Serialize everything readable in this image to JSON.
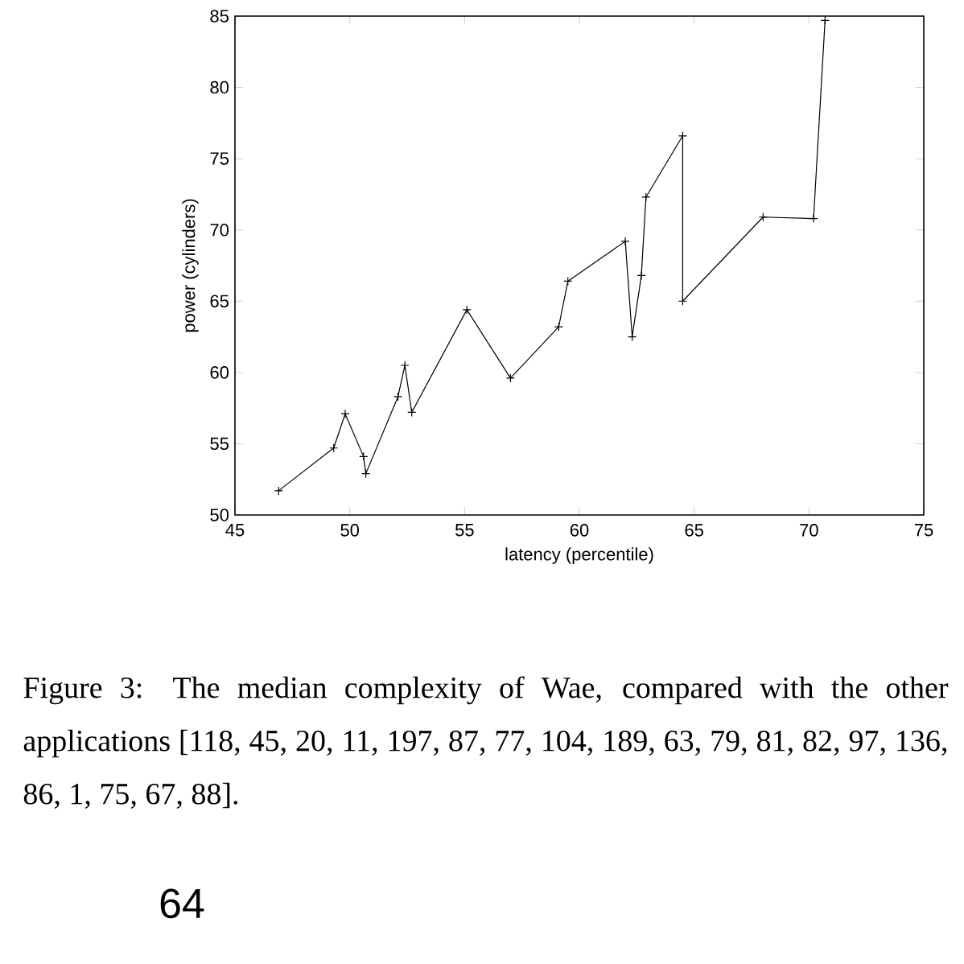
{
  "chart_data": {
    "type": "line",
    "xlabel": "latency (percentile)",
    "ylabel": "power (cylinders)",
    "x": [
      46.9,
      49.3,
      49.8,
      50.6,
      50.7,
      52.1,
      52.4,
      52.7,
      55.1,
      57.0,
      59.1,
      59.5,
      62.0,
      62.3,
      62.7,
      62.9,
      64.5,
      64.5,
      68.0,
      70.2,
      70.7
    ],
    "series": [
      {
        "color": "#000000",
        "values": [
          51.7,
          54.7,
          57.1,
          54.1,
          52.9,
          58.3,
          60.5,
          57.2,
          64.4,
          59.6,
          63.2,
          66.4,
          69.2,
          62.5,
          66.8,
          72.3,
          76.6,
          65.0,
          70.9,
          70.8,
          84.7
        ]
      }
    ],
    "xlim": [
      45,
      75
    ],
    "ylim": [
      50,
      85
    ],
    "xticks": [
      45,
      50,
      55,
      60,
      65,
      70,
      75
    ],
    "yticks": [
      50,
      55,
      60,
      65,
      70,
      75,
      80,
      85
    ],
    "grid": false,
    "marker": "cross",
    "line_style": "solid",
    "annotations": [
      "Figure 3: The median complexity of Wae, compared with the other applications [118, 45, 20, 11, 197, 87, 77, 104, 189, 63, 79, 81, 82, 97, 136, 86, 1, 75, 67, 88].",
      "64"
    ]
  }
}
